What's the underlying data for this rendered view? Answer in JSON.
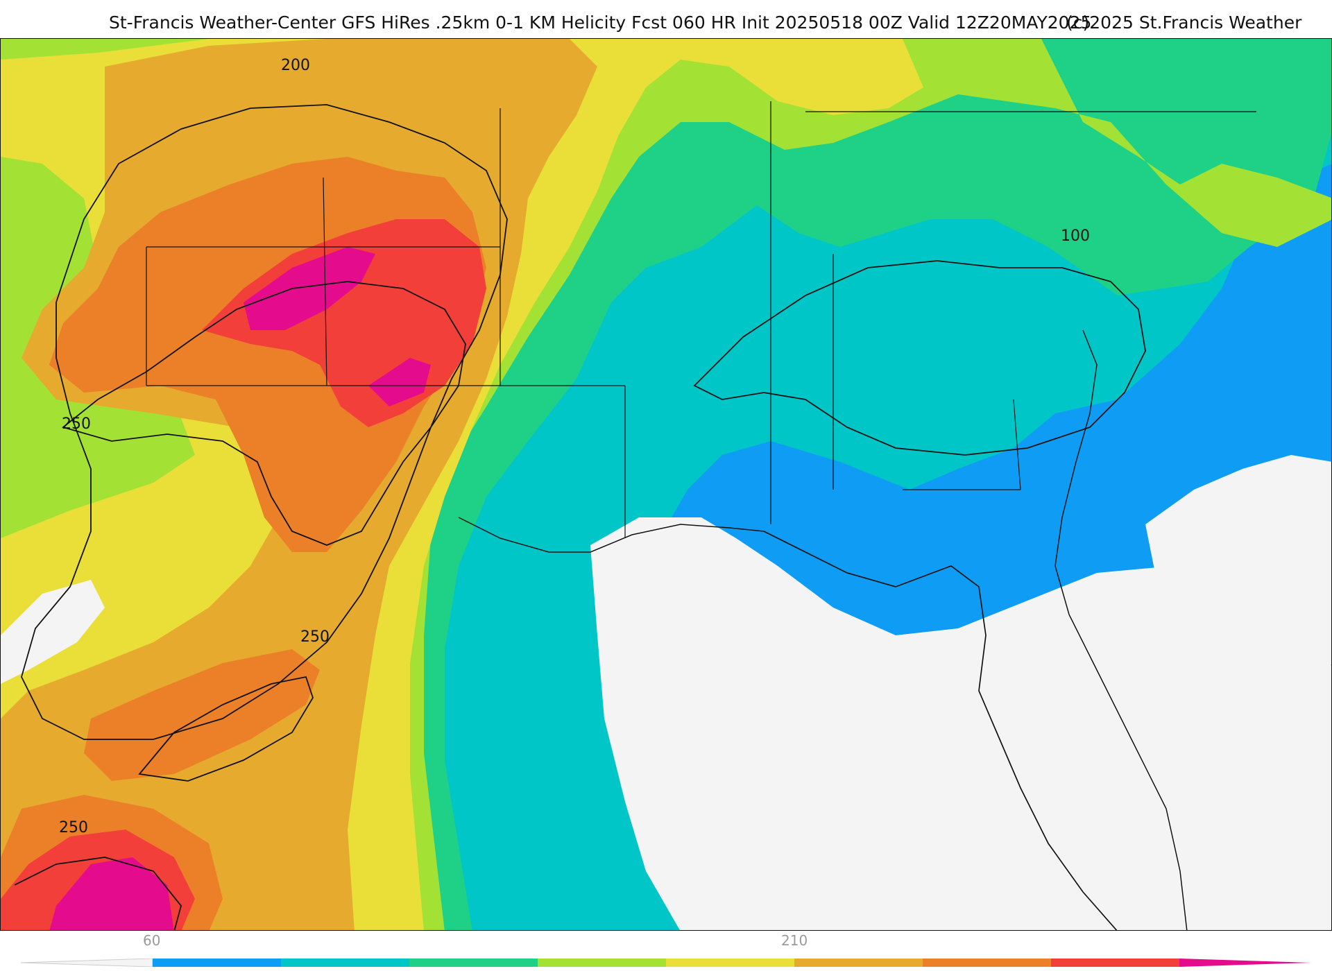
{
  "header": {
    "title": "St-Francis Weather-Center GFS HiRes .25km 0-1 KM Helicity Fcst 060 HR Init 20250518 00Z  Valid 12Z20MAY2025",
    "copyright": "(c)2025 St.Francis Weather"
  },
  "map": {
    "product": "0-1 KM Helicity",
    "contour_labels": [
      "200",
      "250",
      "250",
      "250",
      "100"
    ]
  },
  "colorbar": {
    "tick_labels": [
      "60",
      "210"
    ],
    "colors": [
      "#f4f4f4",
      "#0f9cf5",
      "#00c6c8",
      "#1fd187",
      "#a3e234",
      "#eadf38",
      "#e5aa2e",
      "#ec8029",
      "#f23f3a",
      "#e40c8c"
    ]
  },
  "legend_colors": {
    "blue": "#0f9cf5",
    "teal": "#00c6c8",
    "green": "#1fd187",
    "light_green": "#a3e234",
    "yellow": "#eadf38",
    "gold": "#e5aa2e",
    "orange": "#ec8029",
    "red": "#f23f3a",
    "magenta": "#e40c8c"
  }
}
